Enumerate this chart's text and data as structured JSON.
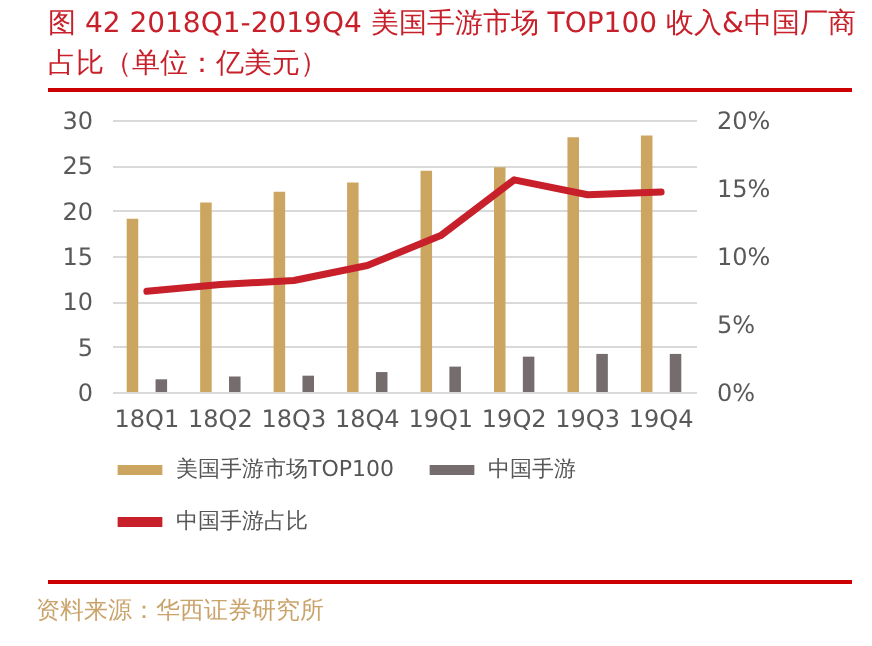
{
  "chart_data": {
    "type": "bar",
    "title": "图 42 2018Q1-2019Q4 美国手游市场 TOP100 收入&中国厂商占比（单位：亿美元）",
    "categories": [
      "18Q1",
      "18Q2",
      "18Q3",
      "18Q4",
      "19Q1",
      "19Q2",
      "19Q3",
      "19Q4"
    ],
    "series": [
      {
        "name": "美国手游市场TOP100",
        "color": "#cca560",
        "values": [
          19.1,
          20.9,
          22.1,
          23.1,
          24.4,
          24.8,
          28.1,
          28.3
        ]
      },
      {
        "name": "中国手游",
        "color": "#756d6d",
        "values": [
          1.4,
          1.7,
          1.8,
          2.2,
          2.8,
          3.9,
          4.2,
          4.2
        ]
      },
      {
        "name": "中国手游占比",
        "type": "line",
        "axis": "y2",
        "color": "#c8202a",
        "values": [
          7.4,
          7.9,
          8.2,
          9.3,
          11.5,
          15.6,
          14.5,
          14.7
        ]
      }
    ],
    "ylim": [
      0,
      30
    ],
    "yticks": [
      0,
      5,
      10,
      15,
      20,
      25,
      30
    ],
    "y2lim": [
      0,
      20
    ],
    "y2ticks": [
      {
        "value": 0,
        "label": "0%"
      },
      {
        "value": 5,
        "label": "5%"
      },
      {
        "value": 10,
        "label": "10%"
      },
      {
        "value": 15,
        "label": "15%"
      },
      {
        "value": 20,
        "label": "20%"
      }
    ],
    "grid": "y",
    "legend": "bottom",
    "annotations": [
      "资料来源：华西证券研究所"
    ]
  }
}
